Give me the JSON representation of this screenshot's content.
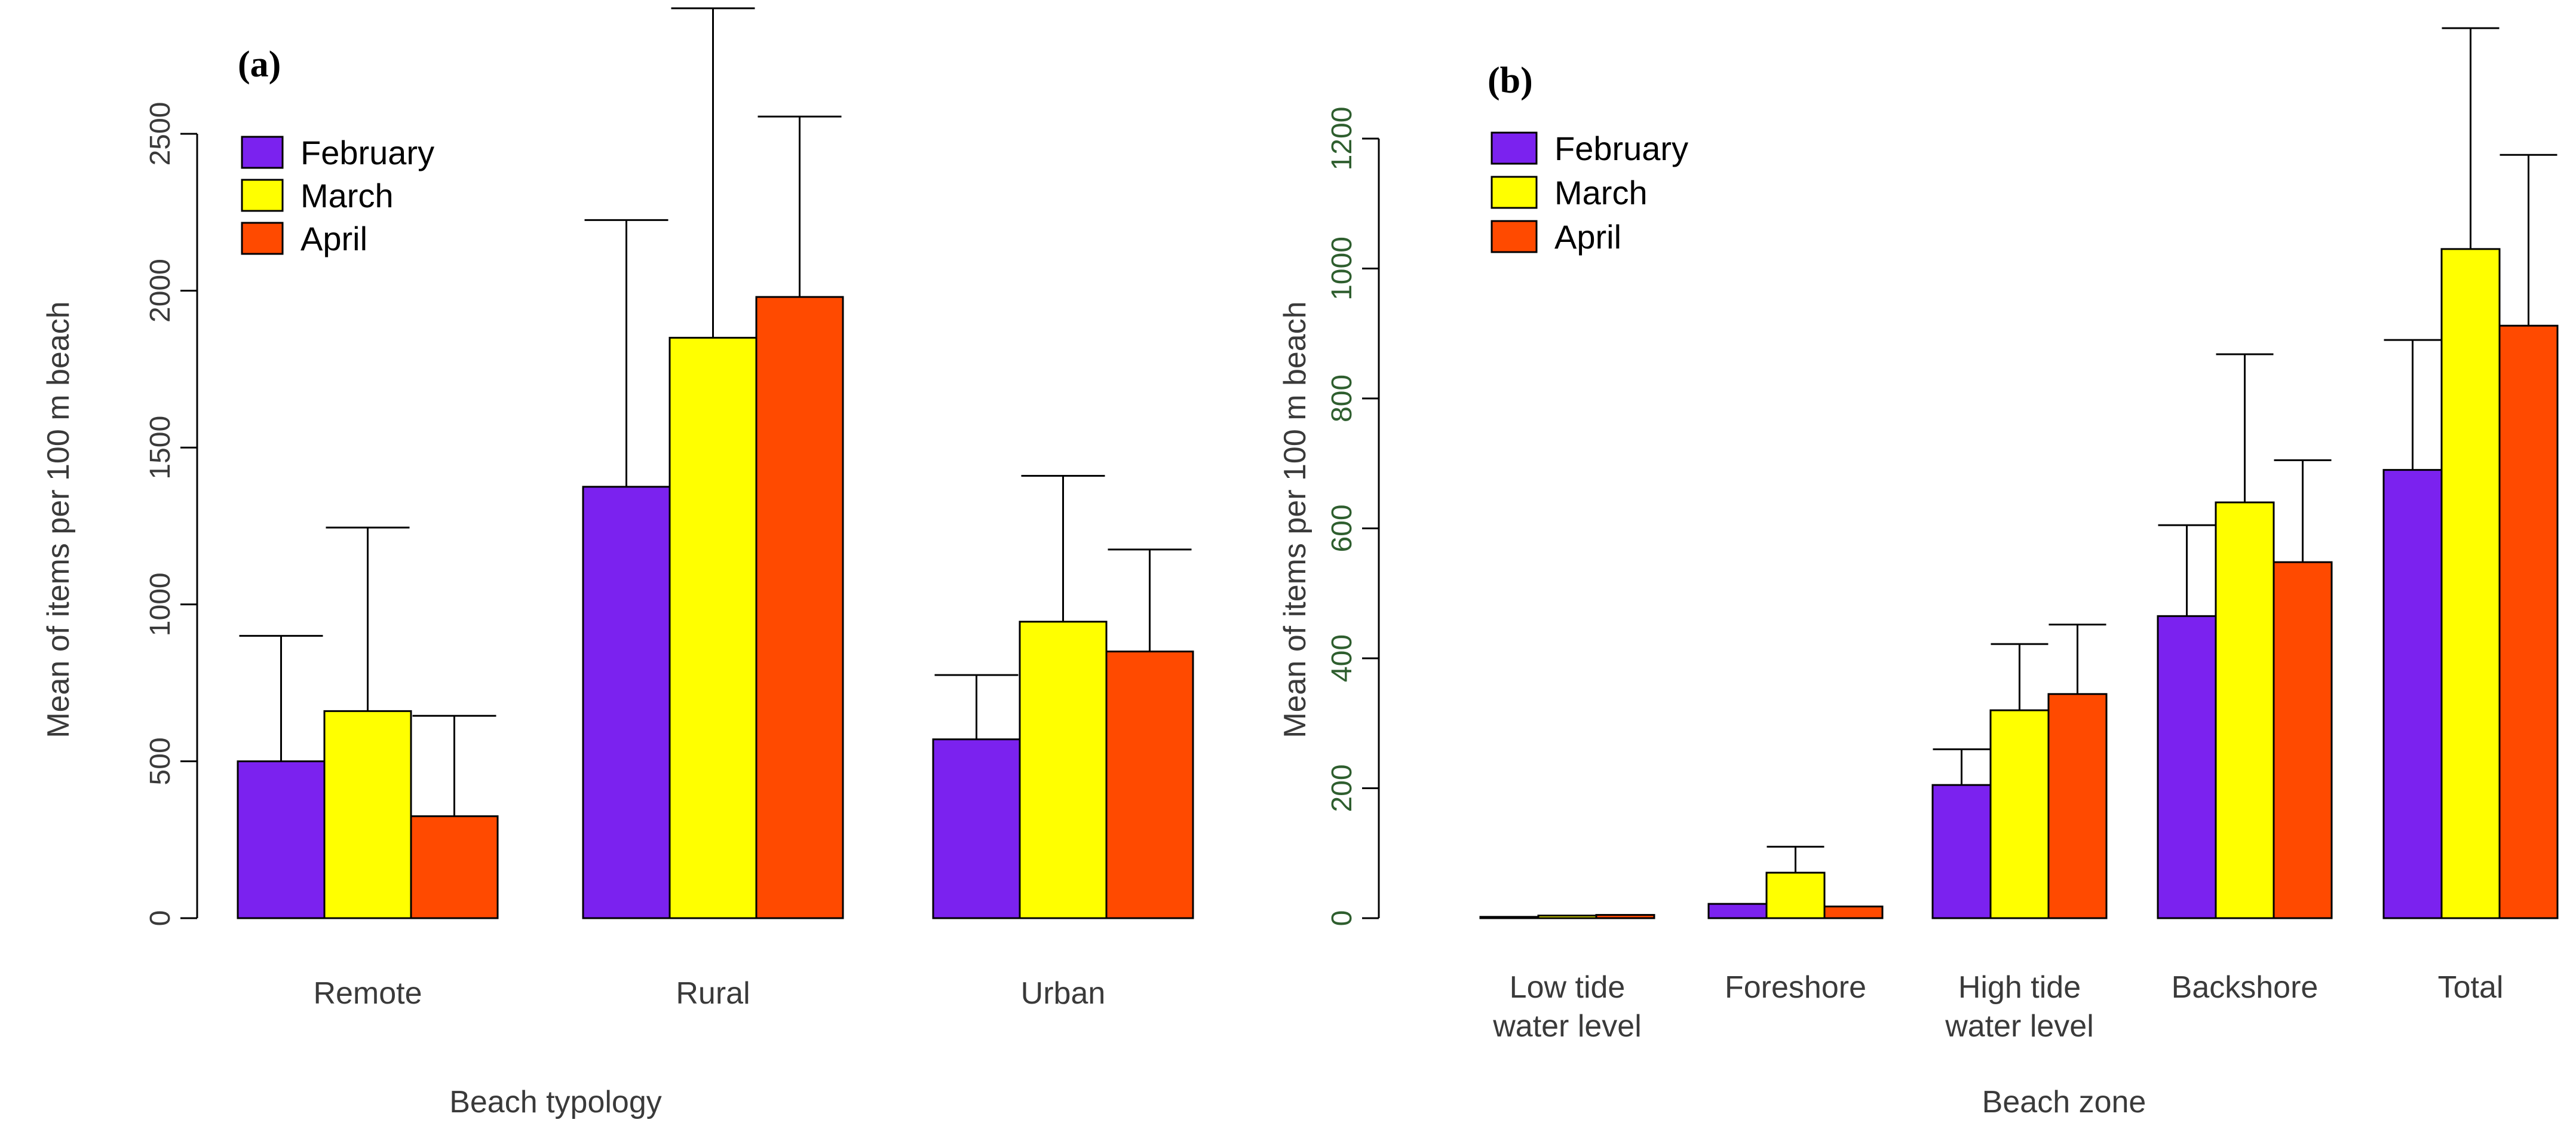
{
  "colors": {
    "February": "#7b22ef",
    "March": "#ffff00",
    "April": "#ff4a00"
  },
  "chart_data": [
    {
      "type": "bar",
      "panel_label": "(a)",
      "xlabel": "Beach typology",
      "ylabel": "Mean of items per 100 m beach",
      "ylim": [
        0,
        2650
      ],
      "yticks": [
        0,
        500,
        1000,
        1500,
        2000,
        2500
      ],
      "grid": false,
      "legend_position": "top-left",
      "categories": [
        "Remote",
        "Rural",
        "Urban"
      ],
      "series": [
        {
          "name": "February",
          "values": [
            500,
            1375,
            570
          ],
          "error_upper": [
            900,
            2225,
            775
          ]
        },
        {
          "name": "March",
          "values": [
            660,
            1850,
            945
          ],
          "error_upper": [
            1245,
            2900,
            1410
          ]
        },
        {
          "name": "April",
          "values": [
            325,
            1980,
            850
          ],
          "error_upper": [
            645,
            2555,
            1175
          ]
        }
      ]
    },
    {
      "type": "bar",
      "panel_label": "(b)",
      "xlabel": "Beach zone",
      "ylabel": "Mean of items per 100 m beach",
      "ylim": [
        0,
        1300
      ],
      "yticks": [
        0,
        200,
        400,
        600,
        800,
        1000,
        1200
      ],
      "grid": false,
      "legend_position": "top-left",
      "categories": [
        [
          "Low tide",
          "water level"
        ],
        [
          "Foreshore"
        ],
        [
          "High tide",
          "water level"
        ],
        [
          "Backshore"
        ],
        [
          "Total"
        ]
      ],
      "series": [
        {
          "name": "February",
          "values": [
            2,
            22,
            205,
            465,
            690
          ],
          "error_upper": [
            2,
            22,
            260,
            605,
            890
          ]
        },
        {
          "name": "March",
          "values": [
            4,
            70,
            320,
            640,
            1030
          ],
          "error_upper": [
            4,
            110,
            422,
            868,
            1370
          ]
        },
        {
          "name": "April",
          "values": [
            5,
            18,
            345,
            548,
            912
          ],
          "error_upper": [
            5,
            18,
            452,
            705,
            1175
          ]
        }
      ]
    }
  ]
}
